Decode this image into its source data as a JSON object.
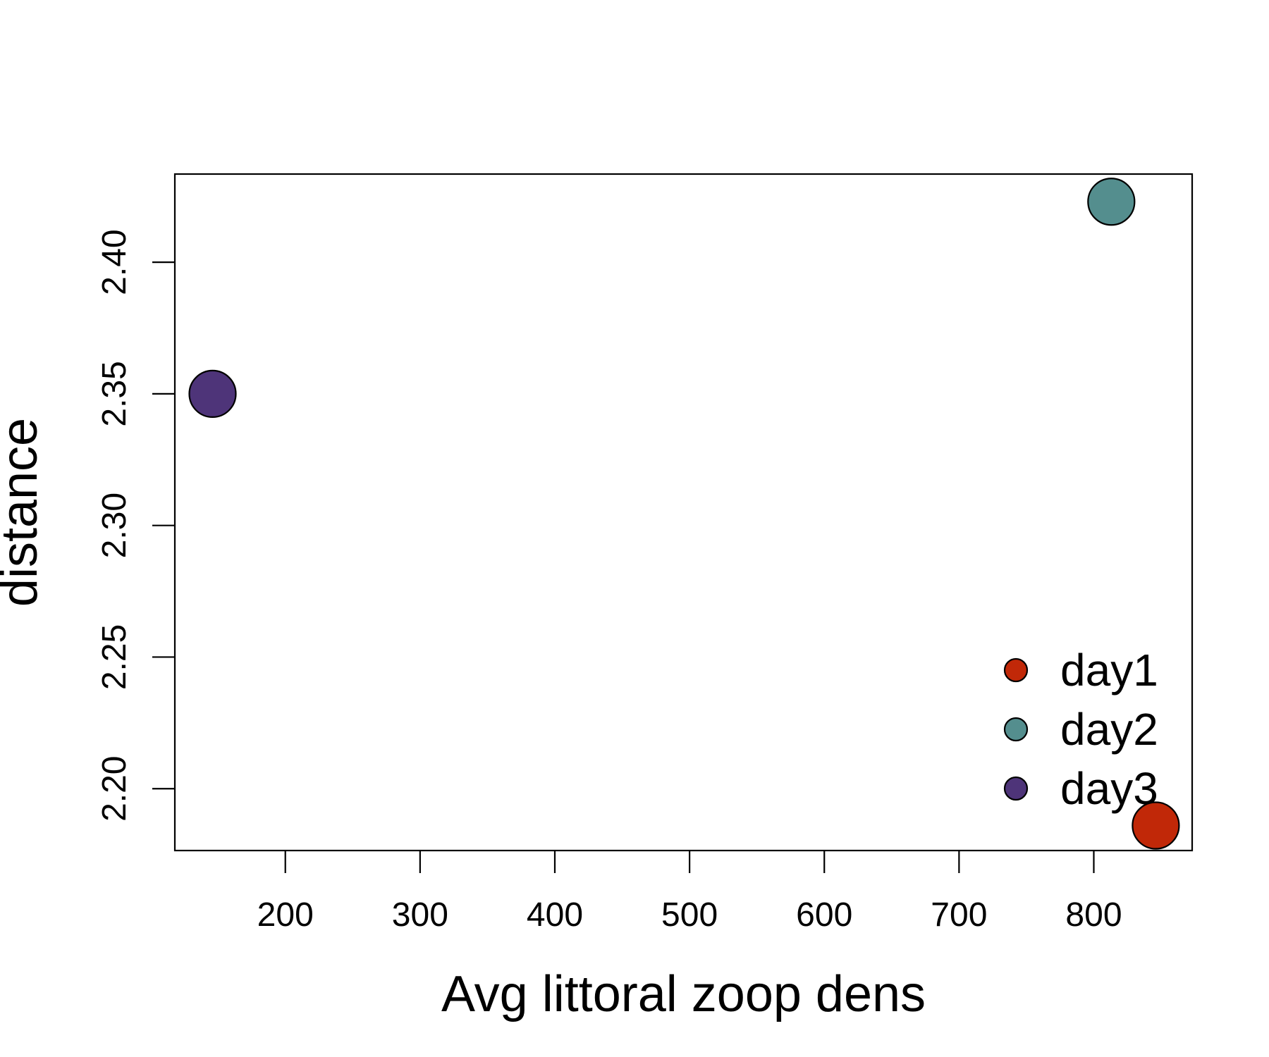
{
  "chart_data": {
    "type": "scatter",
    "title": "",
    "xlabel": "Avg littoral zoop dens",
    "ylabel": "distance",
    "xlim": [
      118,
      873
    ],
    "ylim": [
      2.1765,
      2.4335
    ],
    "x_ticks": [
      200,
      300,
      400,
      500,
      600,
      700,
      800
    ],
    "y_ticks": [
      2.2,
      2.25,
      2.3,
      2.35,
      2.4
    ],
    "x_tick_labels": [
      "200",
      "300",
      "400",
      "500",
      "600",
      "700",
      "800"
    ],
    "y_tick_labels": [
      "2.20",
      "2.25",
      "2.30",
      "2.35",
      "2.40"
    ],
    "grid": false,
    "legend_position": "bottom-right",
    "series": [
      {
        "name": "day1",
        "color": "#C12808",
        "x": [
          846
        ],
        "y": [
          2.186
        ]
      },
      {
        "name": "day2",
        "color": "#548E8E",
        "x": [
          813
        ],
        "y": [
          2.423
        ]
      },
      {
        "name": "day3",
        "color": "#4E3479",
        "x": [
          146
        ],
        "y": [
          2.35
        ]
      }
    ]
  }
}
